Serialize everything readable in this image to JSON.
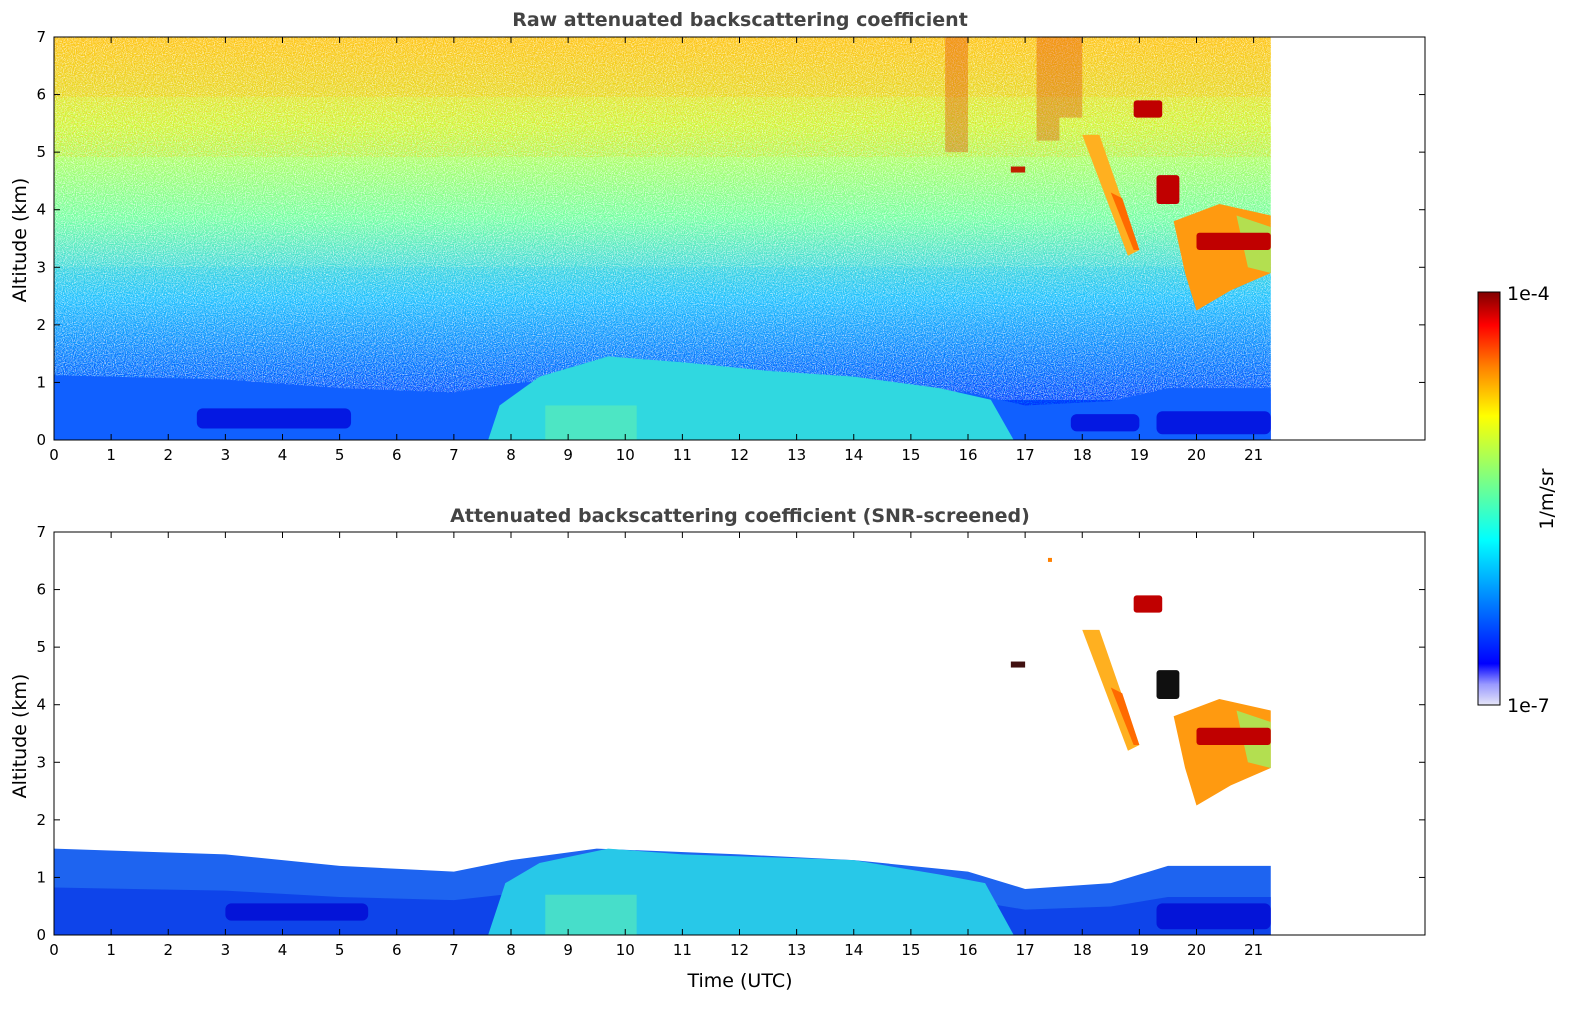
{
  "colormap": {
    "name": "jet",
    "low_color": "#e6e6f8",
    "stops": [
      "#00008f",
      "#0000ff",
      "#0080ff",
      "#00ffff",
      "#80ff80",
      "#ffff00",
      "#ff8000",
      "#ff0000",
      "#800000"
    ]
  },
  "chart_data": [
    {
      "type": "heatmap",
      "title": "Raw attenuated backscattering coefficient",
      "xlabel": "",
      "ylabel": "Altitude (km)",
      "xlim": [
        0,
        24
      ],
      "ylim": [
        0,
        7
      ],
      "x_ticks": [
        0,
        1,
        2,
        3,
        4,
        5,
        6,
        7,
        8,
        9,
        10,
        11,
        12,
        13,
        14,
        15,
        16,
        17,
        18,
        19,
        20,
        21
      ],
      "y_ticks": [
        0,
        1,
        2,
        3,
        4,
        5,
        6,
        7
      ],
      "data_end_time": 21.3,
      "features": {
        "boundary_layer_top_km": [
          [
            0,
            1.5
          ],
          [
            3,
            1.4
          ],
          [
            5,
            1.2
          ],
          [
            7,
            1.1
          ],
          [
            8,
            1.3
          ],
          [
            9.5,
            1.5
          ],
          [
            12,
            1.4
          ],
          [
            14,
            1.3
          ],
          [
            16,
            1.1
          ],
          [
            17,
            0.8
          ],
          [
            18.5,
            0.9
          ],
          [
            19.5,
            1.2
          ],
          [
            21.3,
            1.2
          ]
        ],
        "cloud_layers": [
          {
            "time_range": [
              18,
              19
            ],
            "altitude_km": [
              3.2,
              5.3
            ],
            "level": "moderate"
          },
          {
            "time_range": [
              19.3,
              19.7
            ],
            "altitude_km": [
              4.1,
              4.6
            ],
            "level": "high"
          },
          {
            "time_range": [
              19.5,
              21.3
            ],
            "altitude_km": [
              2.3,
              4.1
            ],
            "level": "moderate"
          },
          {
            "time_range": [
              20,
              21.3
            ],
            "altitude_km": [
              3.3,
              3.6
            ],
            "level": "high"
          },
          {
            "time_range": [
              18.9,
              19.4
            ],
            "altitude_km": [
              5.6,
              5.9
            ],
            "level": "high"
          }
        ]
      },
      "noise": "strong above boundary layer"
    },
    {
      "type": "heatmap",
      "title": "Attenuated backscattering coefficient (SNR-screened)",
      "xlabel": "Time (UTC)",
      "ylabel": "Altitude (km)",
      "xlim": [
        0,
        24
      ],
      "ylim": [
        0,
        7
      ],
      "x_ticks": [
        0,
        1,
        2,
        3,
        4,
        5,
        6,
        7,
        8,
        9,
        10,
        11,
        12,
        13,
        14,
        15,
        16,
        17,
        18,
        19,
        20,
        21
      ],
      "y_ticks": [
        0,
        1,
        2,
        3,
        4,
        5,
        6,
        7
      ],
      "data_end_time": 21.3,
      "noise": "screened"
    }
  ],
  "colorbar": {
    "max_label": "1e-4",
    "min_label": "1e-7",
    "unit_label": "1/m/sr"
  }
}
